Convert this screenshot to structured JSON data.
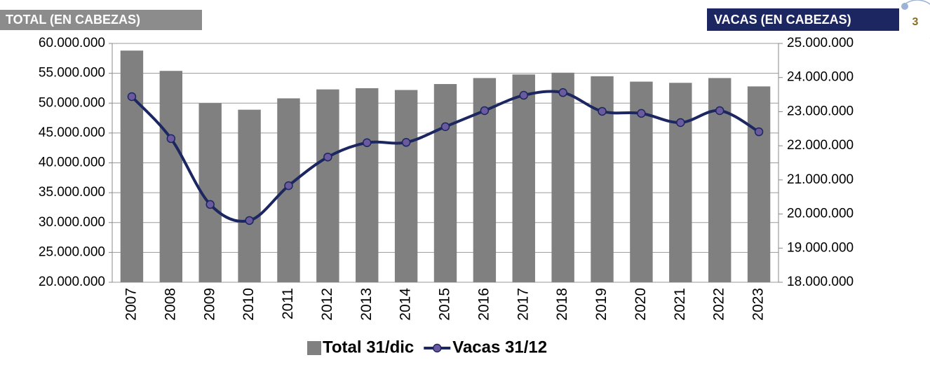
{
  "page_number": "3",
  "chart_data": {
    "type": "bar-line",
    "ylabel": "TOTAL (EN CABEZAS)",
    "y2label": "VACAS (EN CABEZAS)",
    "categories": [
      "2007",
      "2008",
      "2009",
      "2010",
      "2011",
      "2012",
      "2013",
      "2014",
      "2015",
      "2016",
      "2017",
      "2018",
      "2019",
      "2020",
      "2021",
      "2022",
      "2023"
    ],
    "series": [
      {
        "name": "Total 31/dic",
        "type": "bar",
        "color": "#808080",
        "values": [
          58800000,
          55400000,
          50000000,
          48900000,
          50800000,
          52300000,
          52500000,
          52200000,
          53200000,
          54200000,
          54800000,
          55100000,
          54500000,
          53600000,
          53400000,
          54200000,
          52800000
        ]
      },
      {
        "name": "Vacas 31/12",
        "type": "line",
        "axis": "y2",
        "color": "#1c2660",
        "marker_color": "#6b5b9e",
        "values": [
          23440000,
          22210000,
          20280000,
          19810000,
          20830000,
          21670000,
          22090000,
          22100000,
          22560000,
          23030000,
          23480000,
          23560000,
          23010000,
          22950000,
          22680000,
          23030000,
          22410000
        ]
      }
    ],
    "ylim": [
      20000000,
      60000000
    ],
    "yticks": [
      {
        "value": 20000000,
        "label": "20.000.000"
      },
      {
        "value": 25000000,
        "label": "25.000.000"
      },
      {
        "value": 30000000,
        "label": "30.000.000"
      },
      {
        "value": 35000000,
        "label": "35.000.000"
      },
      {
        "value": 40000000,
        "label": "40.000.000"
      },
      {
        "value": 45000000,
        "label": "45.000.000"
      },
      {
        "value": 50000000,
        "label": "50.000.000"
      },
      {
        "value": 55000000,
        "label": "55.000.000"
      },
      {
        "value": 60000000,
        "label": "60.000.000"
      }
    ],
    "y2lim": [
      18000000,
      25000000
    ],
    "y2ticks": [
      {
        "value": 18000000,
        "label": "18.000.000"
      },
      {
        "value": 19000000,
        "label": "19.000.000"
      },
      {
        "value": 20000000,
        "label": "20.000.000"
      },
      {
        "value": 21000000,
        "label": "21.000.000"
      },
      {
        "value": 22000000,
        "label": "22.000.000"
      },
      {
        "value": 23000000,
        "label": "23.000.000"
      },
      {
        "value": 24000000,
        "label": "24.000.000"
      },
      {
        "value": 25000000,
        "label": "25.000.000"
      }
    ],
    "grid": true,
    "legend": "bottom"
  }
}
